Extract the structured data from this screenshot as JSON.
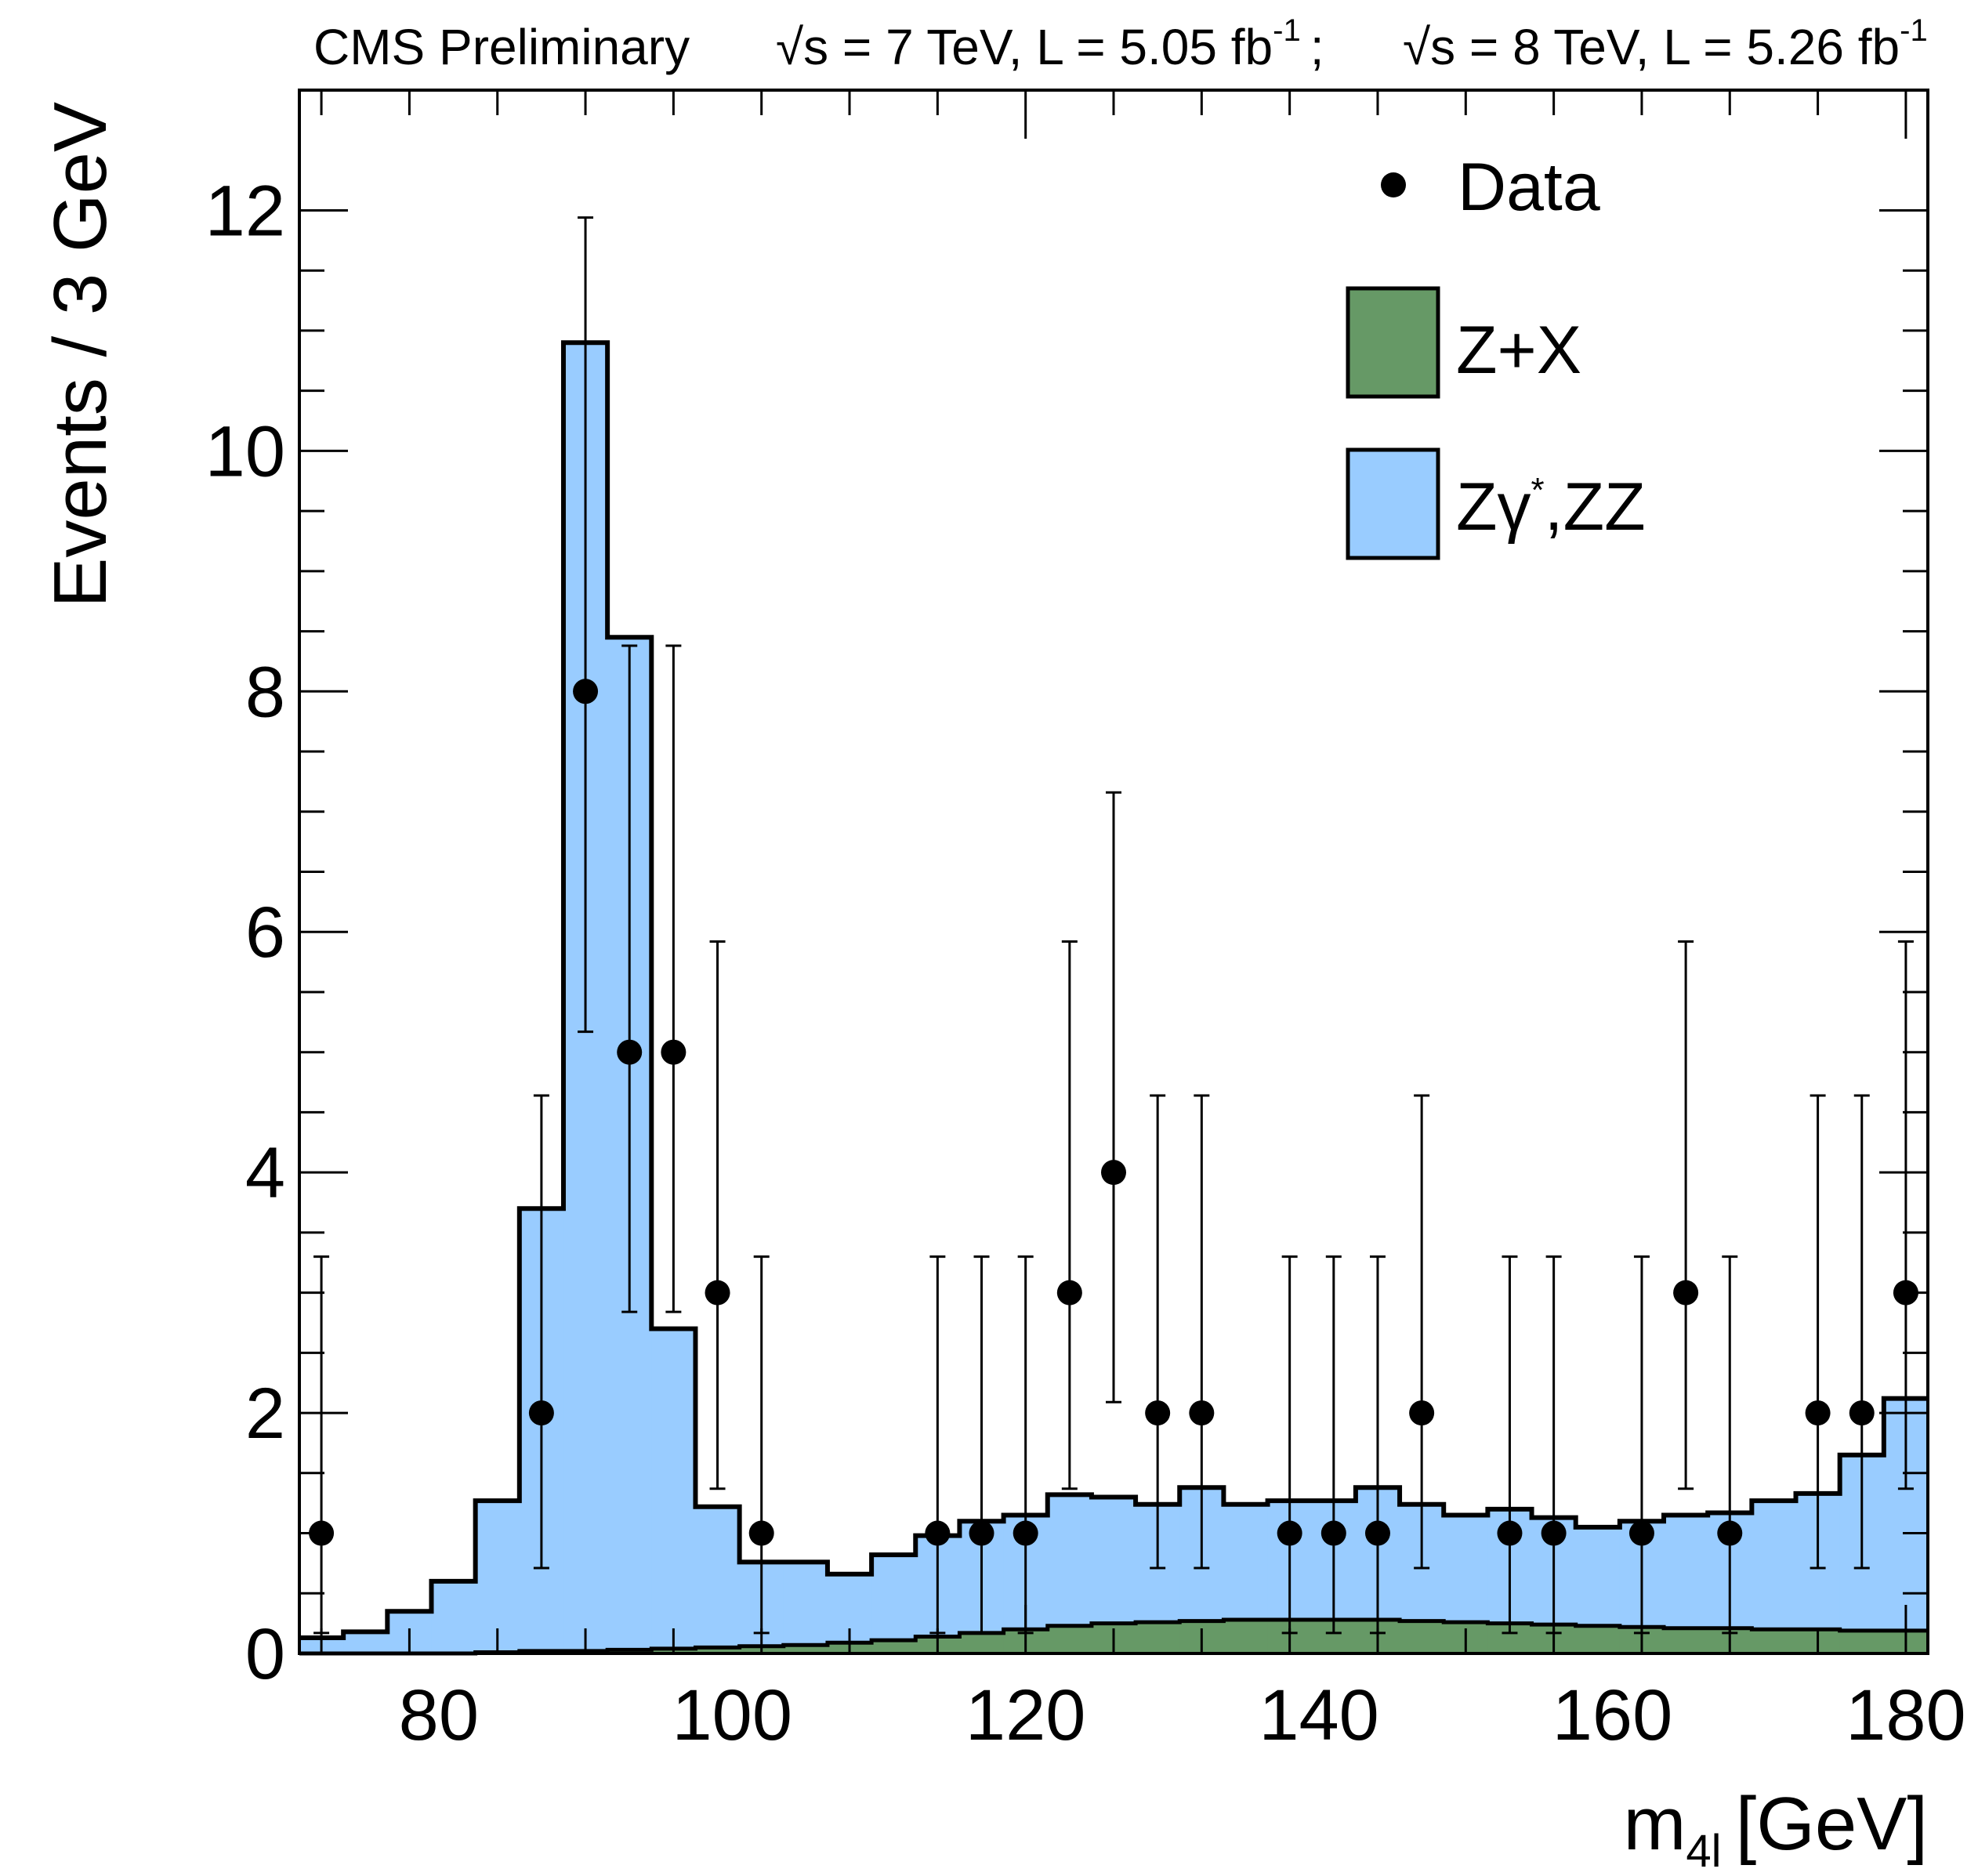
{
  "header": {
    "experiment": "CMS Preliminary",
    "lumi_7": "√s = 7 TeV, L = 5.05 fb",
    "lumi_7_sup": "-1",
    "separator": ";",
    "lumi_8": "√s = 8 TeV, L = 5.26 fb",
    "lumi_8_sup": "-1"
  },
  "colors": {
    "zz": "#99ccff",
    "zx": "#669966",
    "data": "#000000",
    "outline": "#000000"
  },
  "chart_data": {
    "type": "histogram",
    "xlabel": "m",
    "xlabel_sub": "4l",
    "xlabel_unit": "[GeV]",
    "ylabel": "Events / 3 GeV",
    "xlim": [
      70.5,
      181.5
    ],
    "ylim": [
      0,
      13
    ],
    "bin_width": 3,
    "x_ticks": [
      80,
      100,
      120,
      140,
      160,
      180
    ],
    "y_ticks": [
      0,
      2,
      4,
      6,
      8,
      10,
      12
    ],
    "bin_edges": [
      70.5,
      73.5,
      76.5,
      79.5,
      82.5,
      85.5,
      88.5,
      91.5,
      94.5,
      97.5,
      100.5,
      103.5,
      106.5,
      109.5,
      112.5,
      115.5,
      118.5,
      121.5,
      124.5,
      127.5,
      130.5,
      133.5,
      136.5,
      139.5,
      142.5,
      145.5,
      148.5,
      151.5,
      154.5,
      157.5,
      160.5,
      163.5,
      166.5,
      169.5,
      172.5,
      175.5,
      178.5,
      181.5
    ],
    "legend": {
      "position": "top-right",
      "entries": [
        {
          "key": "data",
          "label": "Data"
        },
        {
          "key": "zx",
          "label": "Z+X"
        },
        {
          "key": "zz",
          "label": "Zγ",
          "label_sup": "*",
          "label_rest": ",ZZ"
        }
      ]
    },
    "series": [
      {
        "key": "zx",
        "name": "Z+X",
        "values": [
          0.0,
          0.0,
          0.0,
          0.0,
          0.01,
          0.02,
          0.02,
          0.03,
          0.04,
          0.05,
          0.06,
          0.07,
          0.09,
          0.11,
          0.14,
          0.17,
          0.2,
          0.23,
          0.25,
          0.26,
          0.27,
          0.28,
          0.28,
          0.28,
          0.28,
          0.27,
          0.26,
          0.25,
          0.24,
          0.23,
          0.22,
          0.21,
          0.21,
          0.2,
          0.2,
          0.19,
          0.19
        ]
      },
      {
        "key": "zz",
        "name": "Zγ*,ZZ",
        "stacked_total": [
          0.13,
          0.18,
          0.35,
          0.6,
          1.27,
          3.7,
          10.9,
          8.45,
          2.7,
          1.22,
          0.76,
          0.76,
          0.66,
          0.82,
          0.98,
          1.1,
          1.15,
          1.32,
          1.3,
          1.24,
          1.38,
          1.24,
          1.27,
          1.27,
          1.38,
          1.24,
          1.15,
          1.2,
          1.13,
          1.05,
          1.1,
          1.15,
          1.17,
          1.27,
          1.33,
          1.65,
          2.12
        ]
      }
    ],
    "data_points": {
      "name": "Data",
      "x": [
        72,
        87,
        90,
        93,
        96,
        99,
        102,
        114,
        117,
        120,
        123,
        126,
        129,
        132,
        138,
        141,
        144,
        147,
        153,
        156,
        162,
        165,
        168,
        174,
        177,
        180
      ],
      "y": [
        1,
        2,
        8,
        5,
        5,
        3,
        1,
        1,
        1,
        1,
        3,
        4,
        2,
        2,
        1,
        1,
        1,
        2,
        1,
        1,
        1,
        3,
        1,
        2,
        2,
        3
      ],
      "err_low": [
        0.83,
        1.29,
        2.83,
        2.16,
        2.16,
        1.63,
        0.83,
        0.83,
        0.83,
        0.83,
        1.63,
        1.91,
        1.29,
        1.29,
        0.83,
        0.83,
        0.83,
        1.29,
        0.83,
        0.83,
        0.83,
        1.63,
        0.83,
        1.29,
        1.29,
        1.63
      ],
      "err_high": [
        2.3,
        2.64,
        3.94,
        3.38,
        3.38,
        2.92,
        2.3,
        2.3,
        2.3,
        2.3,
        2.92,
        3.16,
        2.64,
        2.64,
        2.3,
        2.3,
        2.3,
        2.64,
        2.3,
        2.3,
        2.3,
        2.92,
        2.3,
        2.64,
        2.64,
        2.92
      ]
    }
  }
}
